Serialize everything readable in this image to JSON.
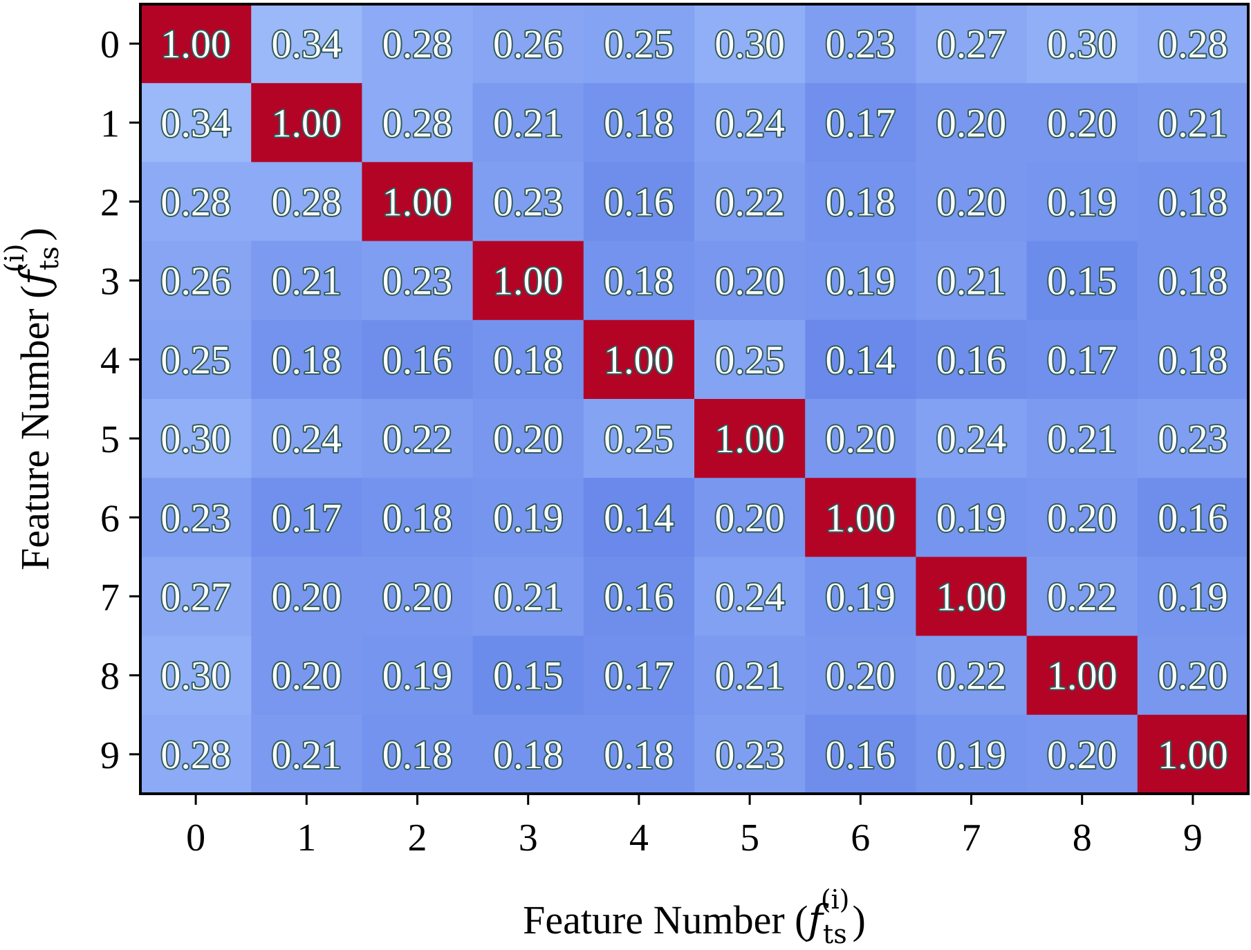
{
  "chart_data": {
    "type": "heatmap",
    "title": "",
    "xlabel": {
      "text": "Feature Number (",
      "math_base": "f",
      "math_sub": "ts",
      "math_sup": "(i)",
      "close": ")"
    },
    "ylabel": {
      "text": "Feature Number (",
      "math_base": "f",
      "math_sub": "ts",
      "math_sup": "(i)",
      "close": ")"
    },
    "x_categories": [
      "0",
      "1",
      "2",
      "3",
      "4",
      "5",
      "6",
      "7",
      "8",
      "9"
    ],
    "y_categories": [
      "0",
      "1",
      "2",
      "3",
      "4",
      "5",
      "6",
      "7",
      "8",
      "9"
    ],
    "values": [
      [
        1.0,
        0.34,
        0.28,
        0.26,
        0.25,
        0.3,
        0.23,
        0.27,
        0.3,
        0.28
      ],
      [
        0.34,
        1.0,
        0.28,
        0.21,
        0.18,
        0.24,
        0.17,
        0.2,
        0.2,
        0.21
      ],
      [
        0.28,
        0.28,
        1.0,
        0.23,
        0.16,
        0.22,
        0.18,
        0.2,
        0.19,
        0.18
      ],
      [
        0.26,
        0.21,
        0.23,
        1.0,
        0.18,
        0.2,
        0.19,
        0.21,
        0.15,
        0.18
      ],
      [
        0.25,
        0.18,
        0.16,
        0.18,
        1.0,
        0.25,
        0.14,
        0.16,
        0.17,
        0.18
      ],
      [
        0.3,
        0.24,
        0.22,
        0.2,
        0.25,
        1.0,
        0.2,
        0.24,
        0.21,
        0.23
      ],
      [
        0.23,
        0.17,
        0.18,
        0.19,
        0.14,
        0.2,
        1.0,
        0.19,
        0.2,
        0.16
      ],
      [
        0.27,
        0.2,
        0.2,
        0.21,
        0.16,
        0.24,
        0.19,
        1.0,
        0.22,
        0.19
      ],
      [
        0.3,
        0.2,
        0.19,
        0.15,
        0.17,
        0.21,
        0.2,
        0.22,
        1.0,
        0.2
      ],
      [
        0.28,
        0.21,
        0.18,
        0.18,
        0.18,
        0.23,
        0.16,
        0.19,
        0.2,
        1.0
      ]
    ],
    "value_format_decimals": 2,
    "colormap": "coolwarm",
    "colormap_stops": [
      "#3b4cc0",
      "#b40426"
    ],
    "grid": false,
    "colorbar": false
  }
}
